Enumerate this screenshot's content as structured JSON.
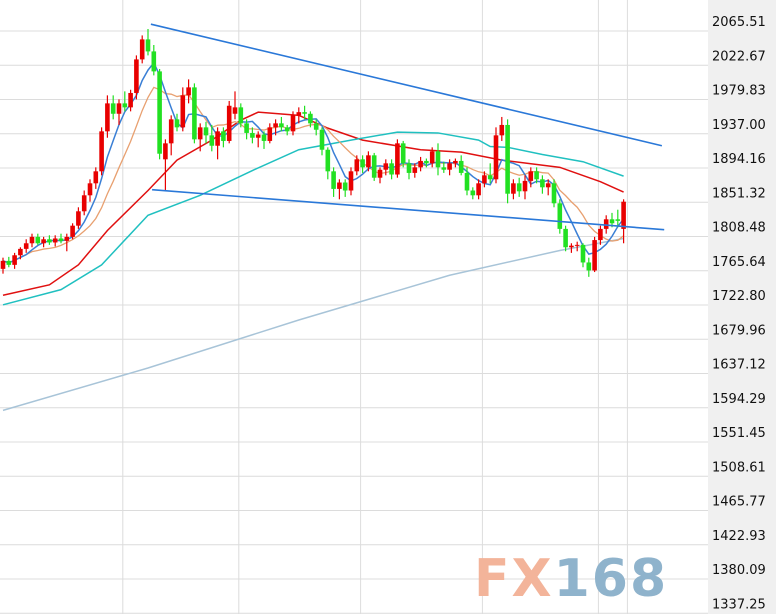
{
  "chart_data": {
    "type": "candlestick",
    "title": "",
    "xlabel": "",
    "ylabel": "",
    "ylim": [
      1337.25,
      2065.51
    ],
    "grid": true,
    "y_ticks": [
      "2065.51",
      "2022.67",
      "1979.83",
      "1937.00",
      "1894.16",
      "1851.32",
      "1808.48",
      "1765.64",
      "1722.80",
      "1679.96",
      "1637.12",
      "1594.29",
      "1551.45",
      "1508.61",
      "1465.77",
      "1422.93",
      "1380.09",
      "1337.25"
    ],
    "vertical_grid_at_candle": [
      21,
      41,
      62,
      83,
      103,
      108
    ],
    "colors": {
      "up": "#e80000",
      "down": "#22e022",
      "ma5": "#3a7fd5",
      "ma10": "#e8a070",
      "ma20": "#e01010",
      "ma_mid": "#20c0c0",
      "ma_long": "#a8c4d8",
      "trendline": "#2a78d8",
      "axis_bg": "#f0f0f0",
      "grid": "#dcdcdc"
    },
    "candles_ohlc": [
      [
        1768,
        1782,
        1762,
        1778
      ],
      [
        1778,
        1783,
        1770,
        1773
      ],
      [
        1773,
        1788,
        1768,
        1785
      ],
      [
        1785,
        1795,
        1780,
        1793
      ],
      [
        1793,
        1805,
        1788,
        1800
      ],
      [
        1800,
        1812,
        1795,
        1808
      ],
      [
        1808,
        1812,
        1798,
        1800
      ],
      [
        1800,
        1808,
        1795,
        1805
      ],
      [
        1805,
        1810,
        1798,
        1801
      ],
      [
        1801,
        1810,
        1796,
        1806
      ],
      [
        1806,
        1812,
        1800,
        1803
      ],
      [
        1803,
        1812,
        1790,
        1808
      ],
      [
        1808,
        1825,
        1805,
        1822
      ],
      [
        1822,
        1845,
        1818,
        1840
      ],
      [
        1840,
        1866,
        1835,
        1860
      ],
      [
        1860,
        1880,
        1852,
        1875
      ],
      [
        1875,
        1895,
        1868,
        1890
      ],
      [
        1890,
        1945,
        1885,
        1940
      ],
      [
        1940,
        1985,
        1932,
        1975
      ],
      [
        1975,
        1985,
        1955,
        1962
      ],
      [
        1962,
        1980,
        1948,
        1975
      ],
      [
        1975,
        1990,
        1965,
        1970
      ],
      [
        1970,
        1992,
        1965,
        1988
      ],
      [
        1988,
        2035,
        1980,
        2030
      ],
      [
        2030,
        2060,
        2025,
        2055
      ],
      [
        2055,
        2068,
        2035,
        2040
      ],
      [
        2040,
        2048,
        2010,
        2015
      ],
      [
        2015,
        2018,
        1905,
        1912
      ],
      [
        1905,
        1930,
        1866,
        1925
      ],
      [
        1925,
        1960,
        1910,
        1955
      ],
      [
        1955,
        1962,
        1940,
        1945
      ],
      [
        1945,
        1995,
        1940,
        1985
      ],
      [
        1985,
        2005,
        1975,
        1995
      ],
      [
        1995,
        2000,
        1925,
        1930
      ],
      [
        1930,
        1950,
        1915,
        1945
      ],
      [
        1945,
        1952,
        1925,
        1935
      ],
      [
        1935,
        1948,
        1915,
        1922
      ],
      [
        1922,
        1945,
        1905,
        1940
      ],
      [
        1940,
        1945,
        1920,
        1928
      ],
      [
        1928,
        1978,
        1925,
        1972
      ],
      [
        1962,
        1990,
        1955,
        1970
      ],
      [
        1970,
        1975,
        1945,
        1950
      ],
      [
        1950,
        1955,
        1930,
        1938
      ],
      [
        1938,
        1945,
        1925,
        1932
      ],
      [
        1932,
        1940,
        1920,
        1936
      ],
      [
        1936,
        1940,
        1918,
        1928
      ],
      [
        1928,
        1950,
        1925,
        1945
      ],
      [
        1945,
        1955,
        1935,
        1950
      ],
      [
        1950,
        1958,
        1940,
        1945
      ],
      [
        1945,
        1948,
        1935,
        1940
      ],
      [
        1940,
        1965,
        1935,
        1960
      ],
      [
        1960,
        1970,
        1950,
        1964
      ],
      [
        1964,
        1972,
        1955,
        1962
      ],
      [
        1962,
        1965,
        1945,
        1950
      ],
      [
        1950,
        1955,
        1935,
        1942
      ],
      [
        1942,
        1945,
        1910,
        1917
      ],
      [
        1917,
        1920,
        1880,
        1890
      ],
      [
        1890,
        1895,
        1858,
        1868
      ],
      [
        1868,
        1880,
        1855,
        1876
      ],
      [
        1876,
        1880,
        1858,
        1866
      ],
      [
        1866,
        1895,
        1860,
        1890
      ],
      [
        1890,
        1910,
        1885,
        1905
      ],
      [
        1905,
        1910,
        1888,
        1895
      ],
      [
        1895,
        1915,
        1890,
        1910
      ],
      [
        1910,
        1913,
        1878,
        1882
      ],
      [
        1882,
        1895,
        1875,
        1892
      ],
      [
        1892,
        1905,
        1885,
        1900
      ],
      [
        1900,
        1905,
        1880,
        1886
      ],
      [
        1886,
        1930,
        1882,
        1925
      ],
      [
        1925,
        1928,
        1895,
        1900
      ],
      [
        1900,
        1905,
        1880,
        1888
      ],
      [
        1888,
        1900,
        1882,
        1895
      ],
      [
        1895,
        1908,
        1890,
        1903
      ],
      [
        1903,
        1906,
        1895,
        1900
      ],
      [
        1900,
        1920,
        1895,
        1915
      ],
      [
        1915,
        1925,
        1885,
        1895
      ],
      [
        1895,
        1902,
        1888,
        1892
      ],
      [
        1892,
        1905,
        1885,
        1900
      ],
      [
        1900,
        1906,
        1895,
        1903
      ],
      [
        1903,
        1910,
        1885,
        1888
      ],
      [
        1888,
        1895,
        1860,
        1866
      ],
      [
        1866,
        1870,
        1855,
        1860
      ],
      [
        1860,
        1880,
        1855,
        1875
      ],
      [
        1875,
        1890,
        1870,
        1885
      ],
      [
        1885,
        1900,
        1875,
        1880
      ],
      [
        1880,
        1945,
        1875,
        1935
      ],
      [
        1935,
        1958,
        1928,
        1948
      ],
      [
        1948,
        1955,
        1850,
        1862
      ],
      [
        1862,
        1880,
        1855,
        1875
      ],
      [
        1875,
        1882,
        1858,
        1865
      ],
      [
        1865,
        1885,
        1855,
        1878
      ],
      [
        1878,
        1895,
        1870,
        1890
      ],
      [
        1890,
        1895,
        1875,
        1880
      ],
      [
        1880,
        1885,
        1862,
        1870
      ],
      [
        1870,
        1880,
        1860,
        1875
      ],
      [
        1875,
        1880,
        1845,
        1850
      ],
      [
        1850,
        1855,
        1812,
        1818
      ],
      [
        1818,
        1822,
        1790,
        1795
      ],
      [
        1795,
        1800,
        1788,
        1797
      ],
      [
        1797,
        1802,
        1790,
        1798
      ],
      [
        1798,
        1800,
        1770,
        1776
      ],
      [
        1776,
        1782,
        1758,
        1766
      ],
      [
        1766,
        1808,
        1764,
        1804
      ],
      [
        1804,
        1822,
        1798,
        1818
      ],
      [
        1818,
        1835,
        1812,
        1830
      ],
      [
        1830,
        1838,
        1820,
        1825
      ],
      [
        1830,
        1842,
        1820,
        1828
      ],
      [
        1818,
        1855,
        1800,
        1852
      ]
    ],
    "moving_averages": [
      {
        "key": "ma20",
        "points": [
          [
            0,
            1735
          ],
          [
            8,
            1748
          ],
          [
            13,
            1773
          ],
          [
            18,
            1816
          ],
          [
            25,
            1866
          ],
          [
            30,
            1904
          ],
          [
            36,
            1929
          ],
          [
            41,
            1954
          ],
          [
            44,
            1964
          ],
          [
            51,
            1960
          ],
          [
            56,
            1944
          ],
          [
            62,
            1929
          ],
          [
            72,
            1917
          ],
          [
            79,
            1914
          ],
          [
            86,
            1904
          ],
          [
            96,
            1895
          ],
          [
            103,
            1877
          ],
          [
            107,
            1864
          ]
        ]
      },
      {
        "key": "ma_mid",
        "points": [
          [
            0,
            1723
          ],
          [
            10,
            1742
          ],
          [
            17,
            1773
          ],
          [
            25,
            1835
          ],
          [
            34,
            1860
          ],
          [
            43,
            1891
          ],
          [
            51,
            1917
          ],
          [
            60,
            1929
          ],
          [
            68,
            1939
          ],
          [
            75,
            1938
          ],
          [
            82,
            1929
          ],
          [
            84,
            1921
          ],
          [
            87,
            1920
          ],
          [
            93,
            1911
          ],
          [
            100,
            1902
          ],
          [
            107,
            1884
          ]
        ]
      },
      {
        "key": "ma_long",
        "points": [
          [
            0,
            1591
          ],
          [
            25,
            1644
          ],
          [
            51,
            1704
          ],
          [
            77,
            1760
          ],
          [
            96,
            1791
          ],
          [
            107,
            1806
          ]
        ]
      }
    ],
    "trendlines": [
      {
        "from": [
          25.5,
          2074
        ],
        "to": [
          113.6,
          1922
        ]
      },
      {
        "from": [
          25.7,
          1867
        ],
        "to": [
          114,
          1817
        ]
      }
    ],
    "watermark": {
      "part1": "FX",
      "part2": "168",
      "color1": "#f3b49a",
      "color2": "#8fb3cc"
    }
  }
}
